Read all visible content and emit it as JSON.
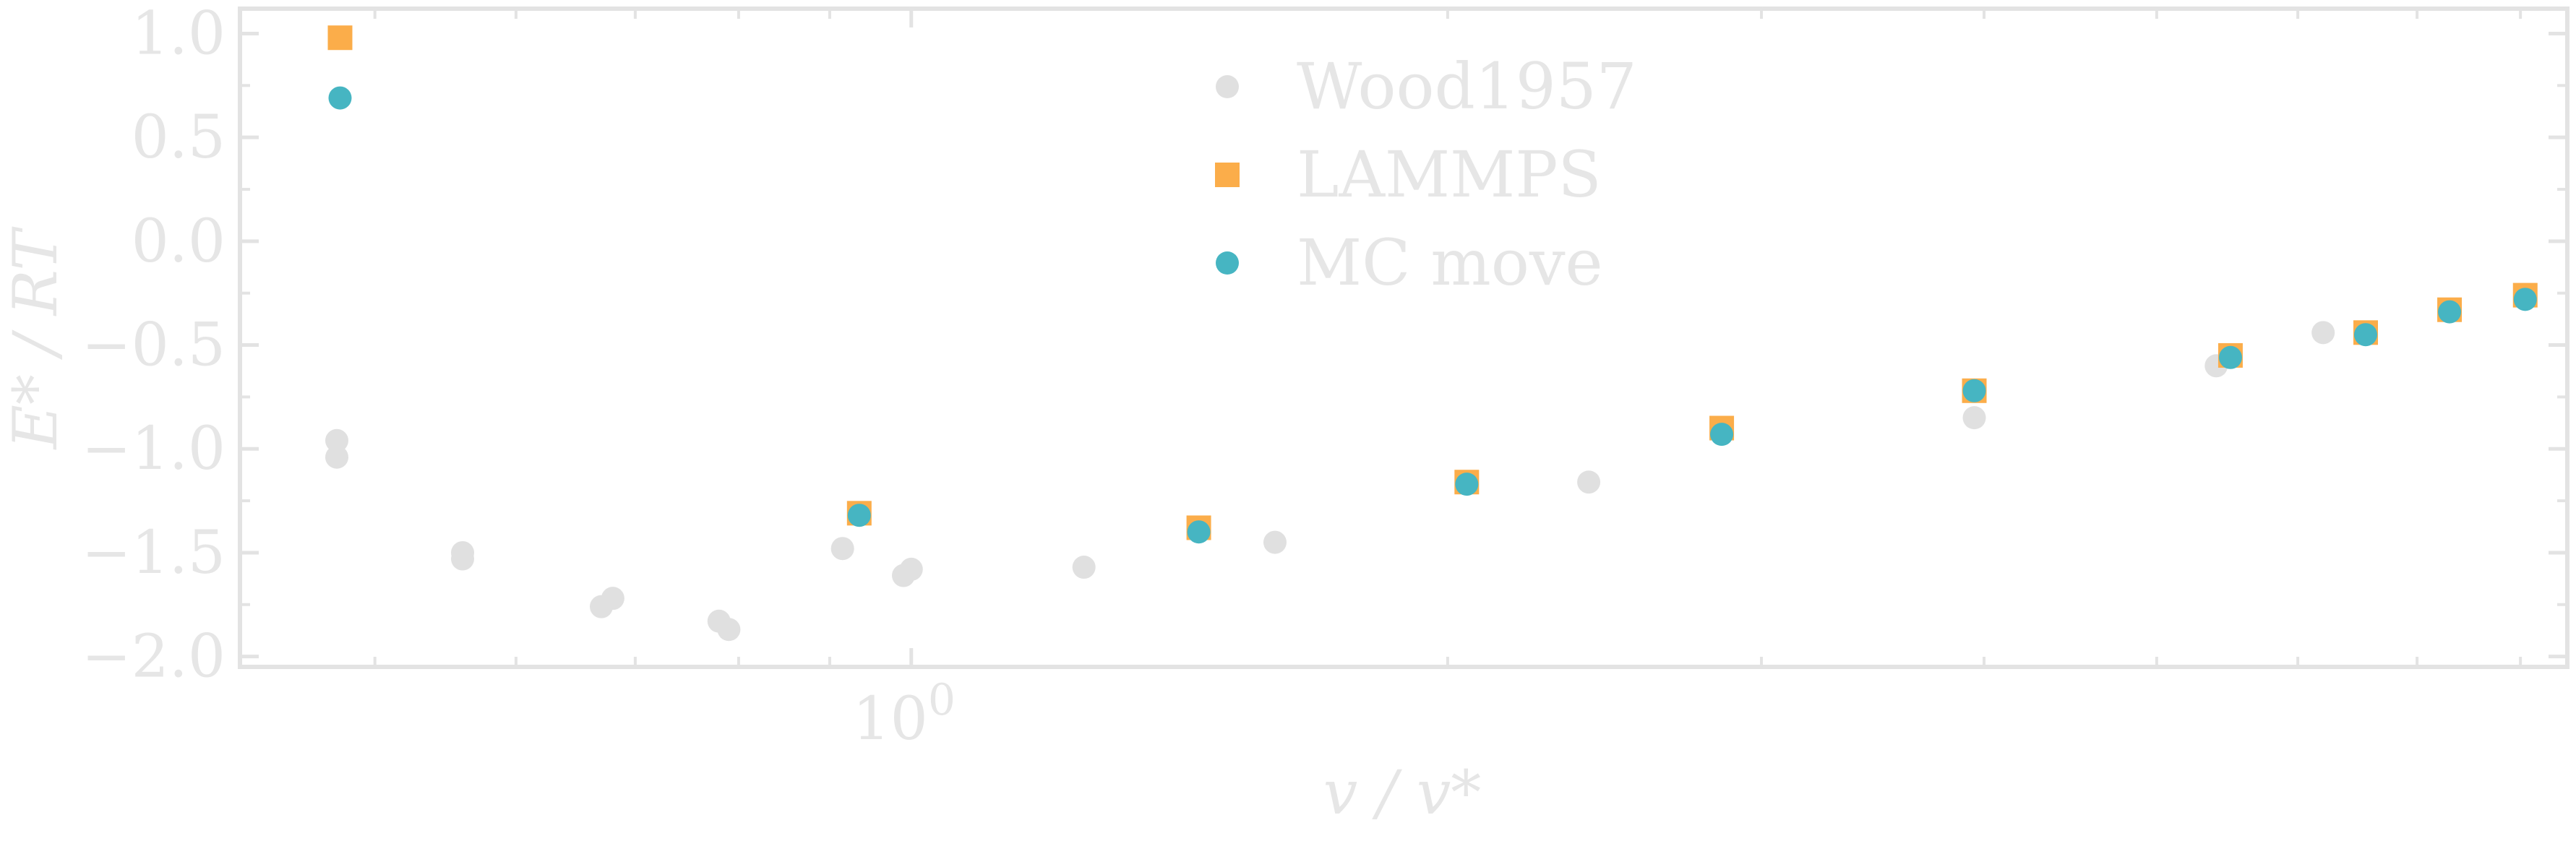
{
  "colors": {
    "axis": "#e3e3e3",
    "text": "#e6e6e6",
    "wood": "#e0e0e0",
    "lammps": "#fbad4a",
    "mc": "#46b5c2"
  },
  "chart_data": {
    "type": "scatter",
    "xscale": "log",
    "xlim": [
      0.42,
      8.5
    ],
    "ylim": [
      -2.05,
      1.12
    ],
    "xlabel": "v / v*",
    "ylabel": "E* / RT",
    "yticks": [
      {
        "value": 1.0,
        "label": "1.0"
      },
      {
        "value": 0.5,
        "label": "0.5"
      },
      {
        "value": 0.0,
        "label": "0.0"
      },
      {
        "value": -0.5,
        "label": "−0.5"
      },
      {
        "value": -1.0,
        "label": "−1.0"
      },
      {
        "value": -1.5,
        "label": "−1.5"
      },
      {
        "value": -2.0,
        "label": "−2.0"
      }
    ],
    "xticks": [
      {
        "value": 1.0,
        "label": "10",
        "exponent": "0"
      }
    ],
    "legend": {
      "placement": "top-center",
      "entries": [
        {
          "key": "wood",
          "label": "Wood1957",
          "marker": "circle"
        },
        {
          "key": "lammps",
          "label": "LAMMPS",
          "marker": "square"
        },
        {
          "key": "mc",
          "label": "MC move",
          "marker": "circle"
        }
      ]
    },
    "series": [
      {
        "key": "wood",
        "name": "Wood1957",
        "marker": "circle",
        "points": [
          [
            0.476,
            -0.96
          ],
          [
            0.476,
            -1.04
          ],
          [
            0.56,
            -1.5
          ],
          [
            0.56,
            -1.53
          ],
          [
            0.67,
            -1.76
          ],
          [
            0.68,
            -1.72
          ],
          [
            0.78,
            -1.83
          ],
          [
            0.79,
            -1.87
          ],
          [
            0.915,
            -1.48
          ],
          [
            0.99,
            -1.61
          ],
          [
            1.0,
            -1.58
          ],
          [
            1.25,
            -1.57
          ],
          [
            1.6,
            -1.45
          ],
          [
            2.4,
            -1.16
          ],
          [
            3.95,
            -0.85
          ],
          [
            5.4,
            -0.6
          ],
          [
            6.2,
            -0.44
          ]
        ]
      },
      {
        "key": "lammps",
        "name": "LAMMPS",
        "marker": "square",
        "points": [
          [
            0.478,
            0.98
          ],
          [
            0.935,
            -1.31
          ],
          [
            1.45,
            -1.38
          ],
          [
            2.05,
            -1.16
          ],
          [
            2.85,
            -0.9
          ],
          [
            3.95,
            -0.72
          ],
          [
            5.5,
            -0.55
          ],
          [
            6.55,
            -0.44
          ],
          [
            7.3,
            -0.33
          ],
          [
            8.05,
            -0.26
          ]
        ]
      },
      {
        "key": "mc",
        "name": "MC move",
        "marker": "circle",
        "points": [
          [
            0.478,
            0.69
          ],
          [
            0.935,
            -1.32
          ],
          [
            1.45,
            -1.4
          ],
          [
            2.05,
            -1.17
          ],
          [
            2.85,
            -0.93
          ],
          [
            3.95,
            -0.72
          ],
          [
            5.5,
            -0.56
          ],
          [
            6.55,
            -0.45
          ],
          [
            7.3,
            -0.34
          ],
          [
            8.05,
            -0.28
          ]
        ]
      }
    ]
  }
}
